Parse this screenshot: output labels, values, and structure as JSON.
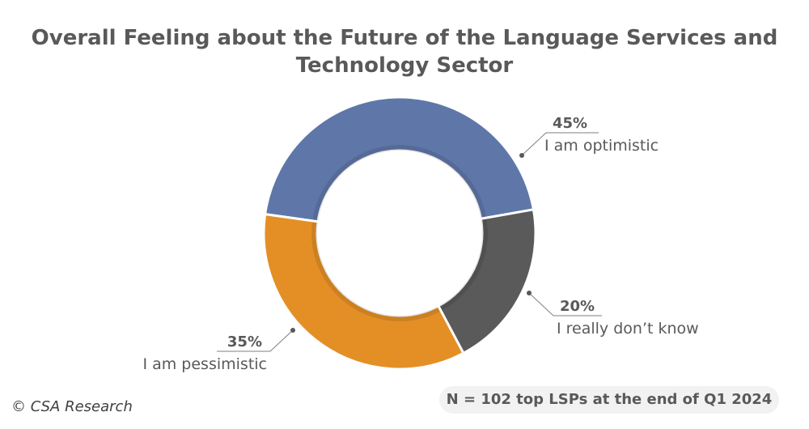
{
  "chart_data": {
    "type": "pie",
    "variant": "donut",
    "title": "Overall Feeling about the Future of the Language Services and Technology Sector",
    "categories": [
      "I am optimistic",
      "I really don’t know",
      "I am pessimistic"
    ],
    "values": [
      45,
      20,
      35
    ],
    "labels": [
      "45%",
      "20%",
      "35%"
    ],
    "colors": [
      "#5f77a8",
      "#5a5a5a",
      "#e48f25"
    ],
    "legend": "none"
  },
  "footer": {
    "copyright": "© CSA Research",
    "note": "N = 102 top LSPs at the end of Q1 2024"
  }
}
